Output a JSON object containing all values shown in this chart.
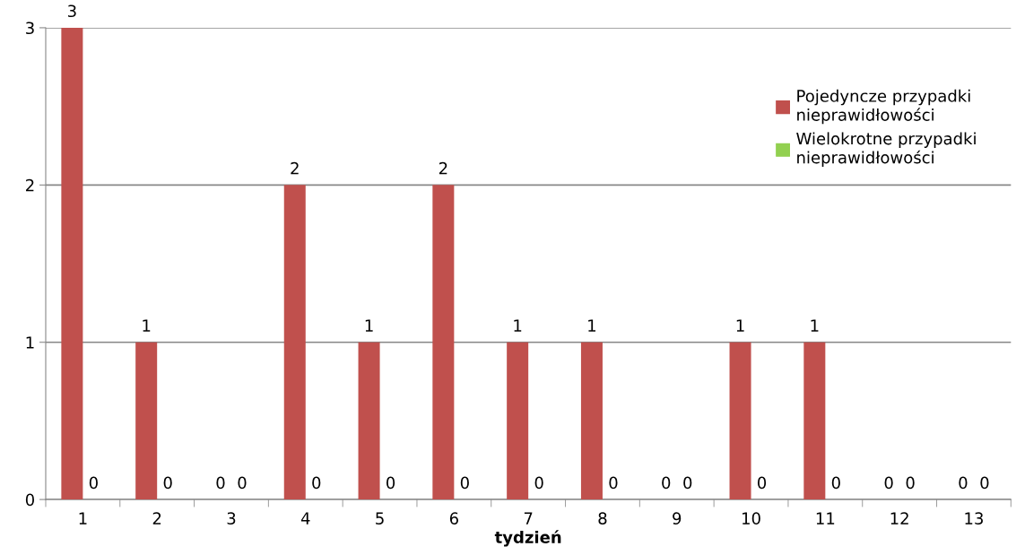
{
  "chart_data": {
    "type": "bar",
    "xlabel": "tydzień",
    "categories": [
      "1",
      "2",
      "3",
      "4",
      "5",
      "6",
      "7",
      "8",
      "9",
      "10",
      "11",
      "12",
      "13"
    ],
    "series": [
      {
        "name": "Pojedyncze przypadki nieprawidłowości",
        "color": "#c0504d",
        "values": [
          3,
          1,
          0,
          2,
          1,
          2,
          1,
          1,
          0,
          1,
          1,
          0,
          0
        ]
      },
      {
        "name": "Wielokrotne przypadki nieprawidłowości",
        "color": "#92d050",
        "values": [
          0,
          0,
          0,
          0,
          0,
          0,
          0,
          0,
          0,
          0,
          0,
          0,
          0
        ]
      }
    ],
    "ylim": [
      0,
      3
    ],
    "yticks": [
      0,
      1,
      2,
      3
    ],
    "grid": "y",
    "legend": "top right",
    "data_labels": true
  }
}
